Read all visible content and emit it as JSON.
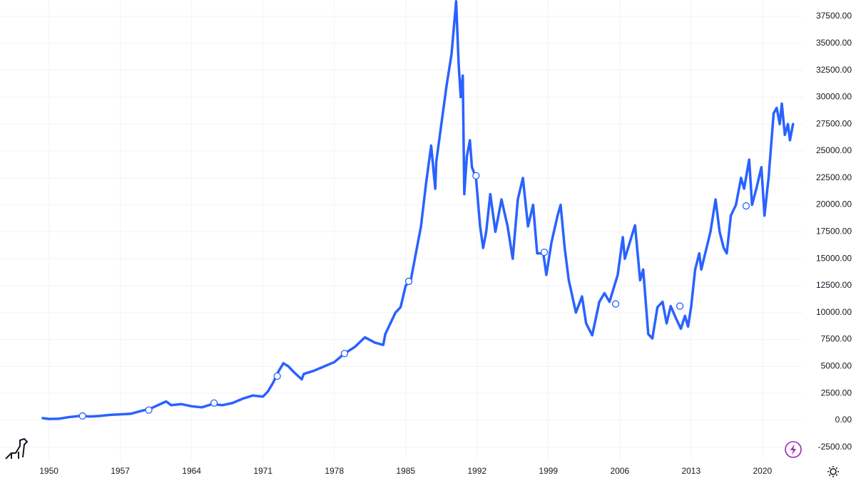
{
  "chart_data": {
    "type": "line",
    "color": "#2962ff",
    "grid": true,
    "x": [
      1949.4,
      1950,
      1951,
      1952,
      1953,
      1954,
      1955,
      1956,
      1957,
      1958,
      1959,
      1960,
      1961.5,
      1962,
      1963,
      1964,
      1965,
      1966,
      1967,
      1968,
      1969,
      1970,
      1971,
      1971.5,
      1972,
      1972.5,
      1973,
      1973.5,
      1974,
      1974.8,
      1975,
      1976,
      1977,
      1978,
      1979,
      1980,
      1981,
      1982,
      1982.8,
      1983,
      1984,
      1984.5,
      1985,
      1985.5,
      1986,
      1986.5,
      1987,
      1987.5,
      1987.9,
      1988,
      1988.5,
      1989,
      1989.5,
      1989.95,
      1990.2,
      1990.4,
      1990.6,
      1990.75,
      1991,
      1991.3,
      1991.5,
      1991.9,
      1992.3,
      1992.6,
      1992.9,
      1993.3,
      1993.8,
      1994.4,
      1995,
      1995.5,
      1996,
      1996.5,
      1997,
      1997.5,
      1997.9,
      1998.5,
      1998.8,
      1999.3,
      1999.9,
      2000.2,
      2000.6,
      2001,
      2001.7,
      2002.3,
      2002.7,
      2003.3,
      2004,
      2004.5,
      2005,
      2005.8,
      2006.3,
      2006.5,
      2007.3,
      2007.5,
      2008,
      2008.3,
      2008.8,
      2009.2,
      2009.7,
      2010.2,
      2010.6,
      2011,
      2011.5,
      2012,
      2012.4,
      2012.7,
      2013,
      2013.4,
      2013.8,
      2014,
      2014.9,
      2015.4,
      2015.8,
      2016.2,
      2016.5,
      2016.9,
      2017.4,
      2017.9,
      2018.2,
      2018.7,
      2018.98,
      2019.4,
      2019.9,
      2020.2,
      2020.6,
      2021.1,
      2021.4,
      2021.7,
      2021.9,
      2022.2,
      2022.5,
      2022.7,
      2023
    ],
    "values": [
      200,
      120,
      150,
      300,
      400,
      350,
      400,
      500,
      550,
      600,
      850,
      1100,
      1750,
      1400,
      1500,
      1300,
      1200,
      1500,
      1400,
      1600,
      2000,
      2300,
      2200,
      2700,
      3500,
      4500,
      5300,
      5000,
      4500,
      3800,
      4300,
      4600,
      5000,
      5400,
      6200,
      6800,
      7700,
      7200,
      7000,
      8000,
      10000,
      10500,
      12500,
      13000,
      15500,
      18000,
      22000,
      25500,
      21500,
      24000,
      27500,
      31000,
      34000,
      38900,
      33000,
      30000,
      32000,
      21000,
      24500,
      26000,
      23500,
      22500,
      18000,
      16000,
      17500,
      21000,
      17500,
      20500,
      18000,
      15000,
      20500,
      22500,
      18000,
      20000,
      15500,
      15500,
      13500,
      16500,
      19000,
      20000,
      16000,
      13000,
      10000,
      11500,
      9000,
      7900,
      11000,
      11800,
      11000,
      13500,
      17000,
      15000,
      17500,
      18100,
      13000,
      14000,
      8000,
      7600,
      10500,
      11000,
      9000,
      10600,
      9500,
      8500,
      9700,
      8700,
      10500,
      14000,
      15500,
      14000,
      17500,
      20500,
      17500,
      16000,
      15500,
      19000,
      20000,
      22500,
      21500,
      24200,
      20000,
      21500,
      23500,
      19000,
      22500,
      28500,
      29000,
      27500,
      29400,
      26500,
      27500,
      26000,
      27500
    ],
    "markers": {
      "x": [
        1953.3,
        1959.8,
        1966.2,
        1972.4,
        1979.0,
        1985.3,
        1991.9,
        1998.6,
        2005.6,
        2011.9,
        2018.4
      ],
      "values": [
        400,
        950,
        1600,
        4100,
        6200,
        12900,
        22700,
        15600,
        10800,
        10600,
        19900
      ]
    },
    "xlim": [
      1945.2,
      2024.0
    ],
    "ylim": [
      -3640,
      39020
    ],
    "xticks": [
      1950,
      1957,
      1964,
      1971,
      1978,
      1985,
      1992,
      1999,
      2006,
      2013,
      2020
    ],
    "yticks": [
      {
        "value": -2500,
        "label": "-2500.00"
      },
      {
        "value": 0,
        "label": "0.00"
      },
      {
        "value": 2500,
        "label": "2500.00"
      },
      {
        "value": 5000,
        "label": "5000.00"
      },
      {
        "value": 7500,
        "label": "7500.00"
      },
      {
        "value": 10000,
        "label": "10000.00"
      },
      {
        "value": 12500,
        "label": "12500.00"
      },
      {
        "value": 15000,
        "label": "15000.00"
      },
      {
        "value": 17500,
        "label": "17500.00"
      },
      {
        "value": 20000,
        "label": "20000.00"
      },
      {
        "value": 22500,
        "label": "22500.00"
      },
      {
        "value": 25000,
        "label": "25000.00"
      },
      {
        "value": 27500,
        "label": "27500.00"
      },
      {
        "value": 30000,
        "label": "30000.00"
      },
      {
        "value": 32500,
        "label": "32500.00"
      },
      {
        "value": 35000,
        "label": "35000.00"
      },
      {
        "value": 37500,
        "label": "37500.00"
      }
    ]
  }
}
